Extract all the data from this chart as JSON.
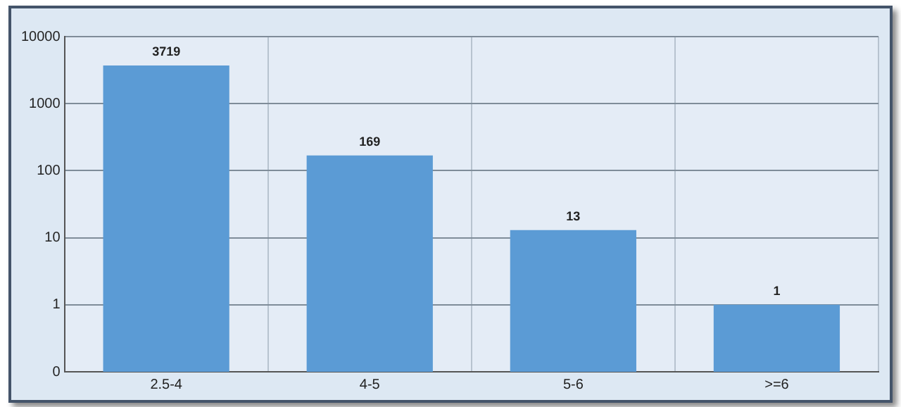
{
  "chart_data": {
    "type": "bar",
    "categories": [
      "2.5-4",
      "4-5",
      "5-6",
      ">=6"
    ],
    "values": [
      3719,
      169,
      13,
      1
    ],
    "color": "#5b9bd5",
    "log": true,
    "ylim": [
      0.1,
      10000
    ],
    "yticks": [
      {
        "value": 0.1,
        "label": "0"
      },
      1,
      10,
      100,
      1000,
      10000
    ],
    "grid": true,
    "data_labels": true,
    "legend": false
  }
}
